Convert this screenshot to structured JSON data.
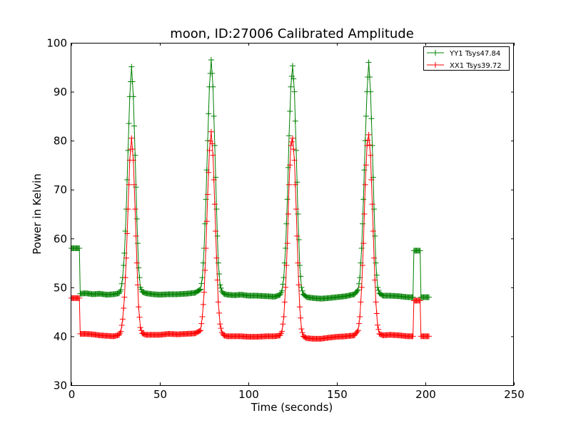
{
  "chart_data": {
    "type": "line",
    "title": "moon, ID:27006 Calibrated Amplitude",
    "xlabel": "Time (seconds)",
    "ylabel": "Power in Kelvin",
    "xlim": [
      0,
      250
    ],
    "ylim": [
      30,
      100
    ],
    "xticks": [
      "0",
      "50",
      "100",
      "150",
      "200",
      "250"
    ],
    "yticks": [
      "30",
      "40",
      "50",
      "60",
      "70",
      "80",
      "90",
      "100"
    ],
    "grid": false,
    "legend_position": "top-right",
    "marker": "+",
    "series": [
      {
        "name": "YY1 Tsys47.84",
        "color": "#008000",
        "x": [
          0,
          2,
          4,
          4.5,
          5,
          8,
          12,
          16,
          20,
          24,
          27,
          28,
          29,
          30,
          31,
          32,
          33,
          34,
          35,
          36,
          37,
          38,
          39,
          40,
          42,
          46,
          50,
          55,
          60,
          65,
          70,
          73,
          74,
          75,
          76,
          77,
          78,
          79,
          80,
          81,
          82,
          83,
          84,
          85,
          86,
          88,
          92,
          96,
          100,
          105,
          110,
          115,
          118,
          119,
          120,
          121,
          122,
          123,
          124,
          125,
          126,
          127,
          128,
          129,
          130,
          131,
          133,
          137,
          141,
          145,
          150,
          155,
          160,
          162,
          163,
          164,
          165,
          166,
          167,
          168,
          169,
          170,
          171,
          172,
          173,
          174,
          176,
          180,
          185,
          190,
          193,
          193.5,
          195,
          197,
          197.5,
          198,
          200,
          202
        ],
        "y": [
          58.0,
          58.0,
          58.0,
          58.0,
          48.7,
          48.8,
          48.6,
          48.7,
          48.5,
          48.6,
          48.8,
          49.5,
          52,
          57,
          66,
          78,
          89,
          95.1,
          89,
          77,
          64,
          54,
          50,
          49.1,
          48.8,
          48.6,
          48.5,
          48.6,
          48.6,
          48.7,
          48.9,
          49.6,
          52,
          58,
          68,
          80,
          91,
          96.5,
          91,
          79,
          66,
          55,
          50.5,
          49.2,
          48.7,
          48.5,
          48.4,
          48.5,
          48.3,
          48.3,
          48.2,
          48.1,
          48.5,
          49.3,
          52,
          58,
          68,
          81,
          91,
          95.3,
          90,
          78,
          65,
          54.5,
          50,
          48.6,
          48.0,
          47.8,
          47.7,
          47.8,
          48.0,
          48.2,
          48.6,
          49.5,
          52,
          58,
          68,
          80,
          90,
          96.0,
          90,
          79,
          66,
          55,
          50,
          48.8,
          48.3,
          48.3,
          48.2,
          48.0,
          48.0,
          57.5,
          57.5,
          57.5,
          48.0,
          48.0,
          48.0,
          48.0
        ]
      },
      {
        "name": "XX1 Tsys39.72",
        "color": "#ff0000",
        "x": [
          0,
          2,
          4,
          4.5,
          5,
          8,
          12,
          16,
          20,
          24,
          27,
          28,
          29,
          30,
          31,
          32,
          33,
          34,
          35,
          36,
          37,
          38,
          39,
          40,
          42,
          46,
          50,
          55,
          60,
          65,
          70,
          73,
          74,
          75,
          76,
          77,
          78,
          79,
          80,
          81,
          82,
          83,
          84,
          85,
          86,
          88,
          92,
          96,
          100,
          105,
          110,
          115,
          118,
          119,
          120,
          121,
          122,
          123,
          124,
          125,
          126,
          127,
          128,
          129,
          130,
          131,
          133,
          137,
          141,
          145,
          150,
          155,
          160,
          162,
          163,
          164,
          165,
          166,
          167,
          168,
          169,
          170,
          171,
          172,
          173,
          174,
          176,
          180,
          185,
          190,
          193,
          193.5,
          195,
          197,
          197.5,
          198,
          200,
          202
        ],
        "y": [
          47.8,
          47.8,
          47.8,
          47.8,
          40.5,
          40.5,
          40.4,
          40.2,
          40.1,
          40.0,
          40.3,
          41.0,
          43.5,
          48,
          56,
          66,
          76,
          80.5,
          76,
          66,
          55,
          46,
          41.8,
          40.6,
          40.3,
          40.3,
          40.3,
          40.5,
          40.4,
          40.5,
          40.6,
          41.2,
          44,
          49,
          58,
          69,
          78,
          81.8,
          77,
          67,
          56,
          47,
          42.5,
          40.8,
          40.2,
          40.0,
          40.0,
          40.0,
          39.9,
          39.9,
          40.0,
          40.0,
          40.2,
          41.0,
          44,
          50,
          59,
          71,
          79,
          80.5,
          76,
          66,
          55,
          46,
          41.5,
          40.0,
          39.6,
          39.5,
          39.5,
          39.7,
          39.9,
          40.0,
          40.2,
          41.2,
          44,
          50,
          59,
          71,
          79,
          81.2,
          77,
          67,
          56,
          47,
          42.3,
          40.5,
          40.2,
          40.3,
          40.2,
          40.0,
          40.0,
          47.3,
          47.3,
          47.3,
          40.0,
          40.0,
          40.0,
          40.0
        ]
      }
    ]
  }
}
